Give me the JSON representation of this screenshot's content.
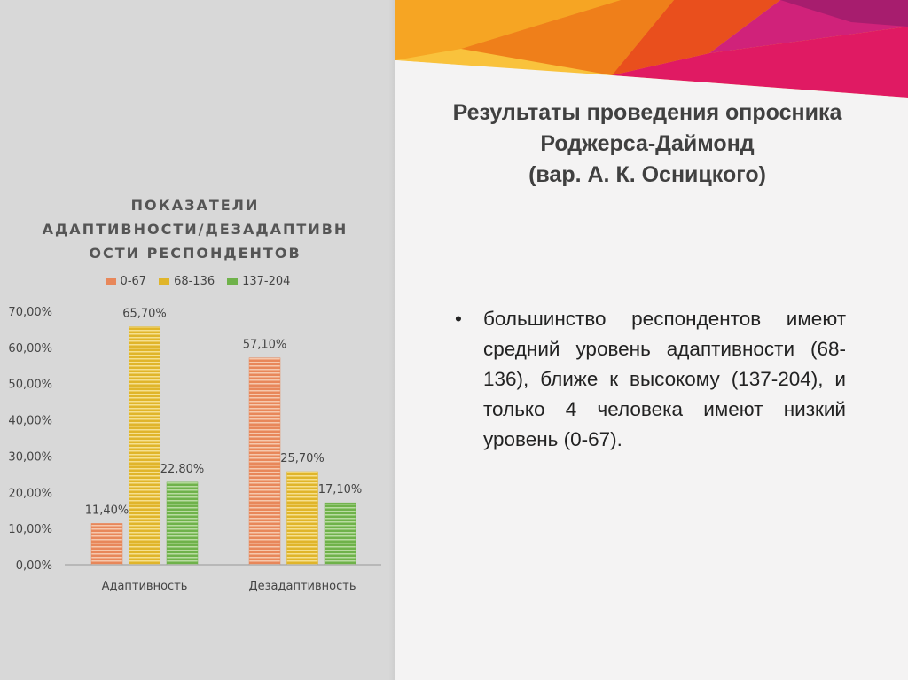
{
  "slide": {
    "heading_lines": [
      "Результаты проведения опросника",
      "Роджерса-Даймонд",
      "(вар. А. К. Осницкого)"
    ],
    "bullet_marker": "•",
    "bullet_text": "большинство респондентов имеют средний уровень адаптивности (68-136), ближе к высокому (137-204), и только 4 человека имеют низкий уровень (0-67)."
  },
  "chart_data": {
    "type": "bar",
    "title_lines": [
      "ПОКАЗАТЕЛИ",
      "АДАПТИВНОСТИ/ДЕЗАДАПТИВН",
      "ОСТИ РЕСПОНДЕНТОВ"
    ],
    "categories": [
      "Адаптивность",
      "Дезадаптивность"
    ],
    "series": [
      {
        "name": "0-67",
        "color": "#e8875a",
        "stripe": "#f6c8ad",
        "values": [
          11.4,
          57.1
        ],
        "labels": [
          "11,40%",
          "57,10%"
        ]
      },
      {
        "name": "68-136",
        "color": "#e0b52a",
        "stripe": "#f6e08e",
        "values": [
          65.7,
          25.7
        ],
        "labels": [
          "65,70%",
          "25,70%"
        ]
      },
      {
        "name": "137-204",
        "color": "#6fb24a",
        "stripe": "#b9dca1",
        "values": [
          22.8,
          17.1
        ],
        "labels": [
          "22,80%",
          "17,10%"
        ]
      }
    ],
    "yticks": [
      "0,00%",
      "10,00%",
      "20,00%",
      "30,00%",
      "40,00%",
      "50,00%",
      "60,00%",
      "70,00%"
    ],
    "ylim": [
      0,
      70
    ],
    "legend_position": "top",
    "grid": false
  }
}
